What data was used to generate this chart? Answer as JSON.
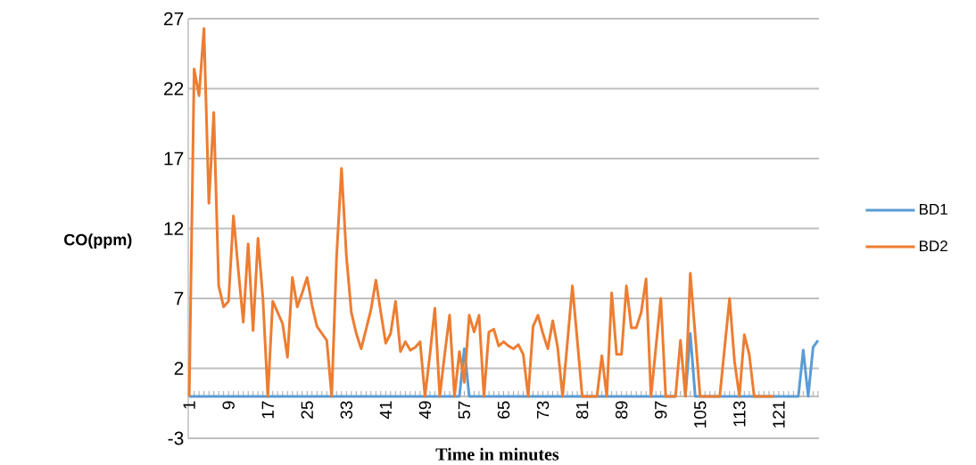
{
  "chart_data": {
    "type": "line",
    "xlabel": "Time in minutes",
    "ylabel": "CO(ppm)",
    "categories": [
      "1",
      null,
      null,
      null,
      null,
      null,
      null,
      null,
      "9",
      null,
      null,
      null,
      null,
      null,
      null,
      null,
      "17",
      null,
      null,
      null,
      null,
      null,
      null,
      null,
      "25",
      null,
      null,
      null,
      null,
      null,
      null,
      null,
      "33",
      null,
      null,
      null,
      null,
      null,
      null,
      null,
      "41",
      null,
      null,
      null,
      null,
      null,
      null,
      null,
      "49",
      null,
      null,
      null,
      null,
      null,
      null,
      null,
      "57",
      null,
      null,
      null,
      null,
      null,
      null,
      null,
      "65",
      null,
      null,
      null,
      null,
      null,
      null,
      null,
      "73",
      null,
      null,
      null,
      null,
      null,
      null,
      null,
      "81",
      null,
      null,
      null,
      null,
      null,
      null,
      null,
      "89",
      null,
      null,
      null,
      null,
      null,
      null,
      null,
      "97",
      null,
      null,
      null,
      null,
      null,
      null,
      null,
      "105",
      null,
      null,
      null,
      null,
      null,
      null,
      null,
      "113",
      null,
      null,
      null,
      null,
      null,
      null,
      null,
      "121",
      null,
      null,
      null,
      null,
      null,
      null,
      null,
      null
    ],
    "series": [
      {
        "name": "BD1",
        "color": "#5b9bd5",
        "values": [
          0,
          0,
          0,
          0,
          0,
          0,
          0,
          0,
          0,
          0,
          0,
          0,
          0,
          0,
          0,
          0,
          0,
          0,
          0,
          0,
          0,
          0,
          0,
          0,
          0,
          0,
          0,
          0,
          0,
          0,
          0,
          0,
          0,
          0,
          0,
          0,
          0,
          0,
          0,
          0,
          0,
          0,
          0,
          0,
          0,
          0,
          0,
          0,
          0,
          0,
          0,
          0,
          0,
          0,
          0,
          0,
          3.4,
          0,
          0,
          0,
          0,
          0,
          0,
          0,
          0,
          0,
          0,
          0,
          0,
          0,
          0,
          0,
          0,
          0,
          0,
          0,
          0,
          0,
          0,
          0,
          0,
          0,
          0,
          0,
          0,
          0,
          0,
          0,
          0,
          0,
          0,
          0,
          0,
          0,
          0,
          0,
          0,
          0,
          0,
          0,
          null,
          0,
          4.5,
          0,
          0,
          0,
          0,
          0,
          0,
          0,
          0,
          0,
          0,
          0,
          0,
          0,
          0,
          0,
          0,
          0,
          0,
          0,
          0,
          0,
          0,
          3.3,
          0,
          3.5,
          4.0
        ]
      },
      {
        "name": "BD2",
        "color": "#ed7d31",
        "values": [
          0,
          23.4,
          21.5,
          26.3,
          13.8,
          20.3,
          7.9,
          6.4,
          6.8,
          12.9,
          9,
          5.3,
          10.9,
          4.7,
          11.3,
          7,
          0,
          6.8,
          6,
          5.2,
          2.8,
          8.5,
          6.4,
          7.4,
          8.5,
          6.5,
          5,
          4.5,
          4,
          0,
          10,
          16.3,
          10,
          6,
          4.5,
          3.4,
          4.8,
          6.2,
          8.3,
          6,
          3.8,
          4.5,
          6.8,
          3.2,
          3.9,
          3.3,
          3.5,
          3.9,
          0,
          3,
          6.3,
          0,
          3,
          5.8,
          0,
          3.2,
          1,
          5.8,
          4.6,
          5.8,
          0,
          4.6,
          4.8,
          3.6,
          3.9,
          3.6,
          3.4,
          3.7,
          3,
          0,
          5,
          5.8,
          4.5,
          3.4,
          5.4,
          3.5,
          0,
          3.9,
          7.9,
          4,
          0,
          0,
          0,
          0,
          2.9,
          0,
          7.4,
          3,
          3,
          7.9,
          4.9,
          4.9,
          6,
          8.4,
          0,
          3.5,
          7,
          0,
          0,
          0,
          4,
          0,
          8.8,
          4.4,
          0,
          0,
          0,
          0,
          0,
          3.5,
          7,
          2.5,
          0,
          4.4,
          3,
          0,
          0,
          0,
          0,
          0,
          null,
          null,
          null,
          null,
          null,
          null,
          null,
          null,
          null
        ]
      }
    ],
    "ylim": [
      -3,
      27
    ],
    "yticks": [
      -3,
      2,
      7,
      12,
      17,
      22,
      27
    ],
    "grid": "y",
    "legend": "right"
  }
}
